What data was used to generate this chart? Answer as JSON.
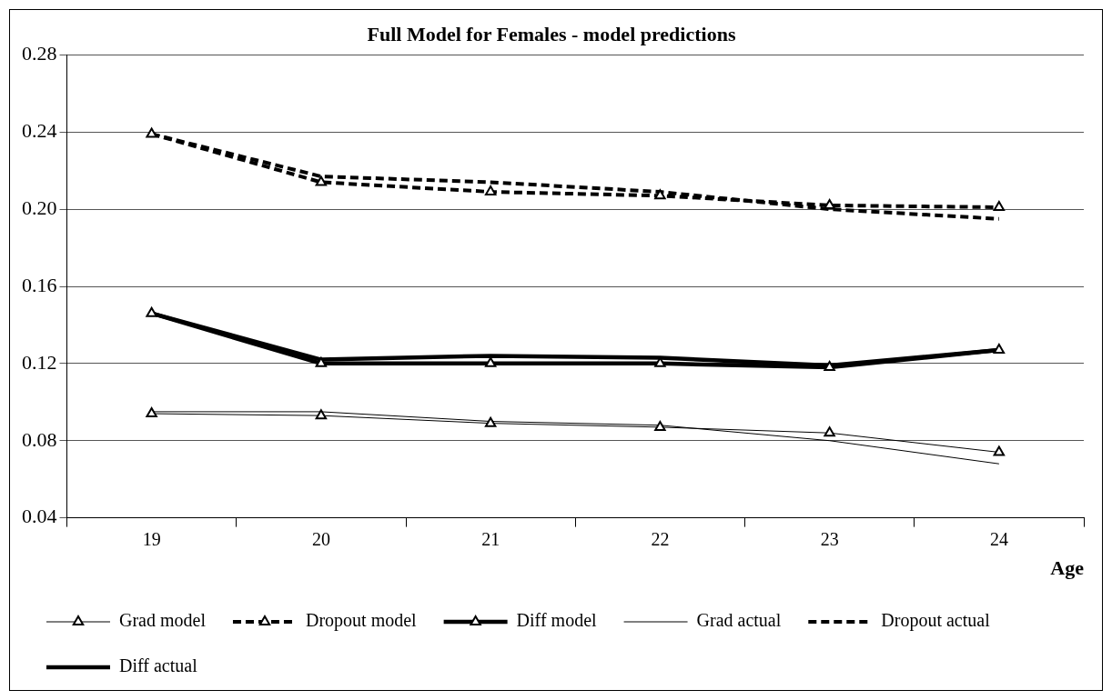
{
  "chart_data": {
    "type": "line",
    "title": "Full Model for Females - model predictions",
    "xlabel": "Age",
    "categories": [
      "19",
      "20",
      "21",
      "22",
      "23",
      "24"
    ],
    "series": [
      {
        "name": "Grad actual",
        "color": "#000000",
        "marker": "none",
        "line_style": "solid",
        "values": [
          0.095,
          0.095,
          0.09,
          0.088,
          0.08,
          0.068
        ]
      },
      {
        "name": "Grad model",
        "color": "#000000",
        "marker": "triangle",
        "line_style": "solid",
        "values": [
          0.094,
          0.093,
          0.089,
          0.087,
          0.084,
          0.074
        ]
      },
      {
        "name": "Dropout actual",
        "color": "#000000",
        "marker": "none",
        "line_style": "dashed",
        "values": [
          0.239,
          0.217,
          0.214,
          0.209,
          0.2,
          0.195
        ]
      },
      {
        "name": "Dropout model",
        "color": "#000000",
        "marker": "triangle",
        "line_style": "dashed",
        "values": [
          0.239,
          0.214,
          0.209,
          0.207,
          0.202,
          0.201
        ]
      },
      {
        "name": "Diff actual",
        "color": "#000000",
        "marker": "none",
        "line_style": "solid",
        "values": [
          0.146,
          0.122,
          0.124,
          0.123,
          0.119,
          0.127
        ]
      },
      {
        "name": "Diff model",
        "color": "#000000",
        "marker": "triangle",
        "line_style": "solid",
        "values": [
          0.146,
          0.12,
          0.12,
          0.12,
          0.118,
          0.127
        ]
      }
    ],
    "ylim": [
      0.04,
      0.28
    ],
    "yticks": [
      0.04,
      0.08,
      0.12,
      0.16,
      {
        "value": 0.2,
        "label": "0.20"
      },
      0.24,
      0.28
    ],
    "grid": "y",
    "legend": "bottom"
  }
}
